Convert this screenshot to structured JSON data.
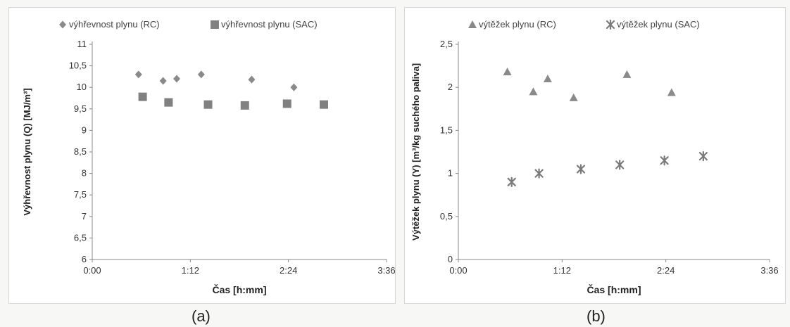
{
  "captions": [
    "(a)",
    "(b)"
  ],
  "chart_data": [
    {
      "type": "scatter",
      "xlabel": "Čas [h:mm]",
      "ylabel": "Výhřevnost plynu (Q) [MJ/m³]",
      "xlim": [
        "0:00",
        "3:36"
      ],
      "ylim": [
        6,
        11
      ],
      "x_ticks": [
        "0:00",
        "1:12",
        "2:24",
        "3:36"
      ],
      "y_ticks": [
        "6",
        "6,5",
        "7",
        "7,5",
        "8",
        "8,5",
        "9",
        "9,5",
        "10",
        "10,5",
        "11"
      ],
      "y_tick_values": [
        6,
        6.5,
        7,
        7.5,
        8,
        8.5,
        9,
        9.5,
        10,
        10.5,
        11
      ],
      "legend_position": "top",
      "series": [
        {
          "name": "výhřevnost plynu (RC)",
          "marker": "diamond",
          "color": "#8a8a8a",
          "x": [
            "0:34",
            "0:52",
            "1:02",
            "1:20",
            "1:57",
            "2:28"
          ],
          "y": [
            10.3,
            10.15,
            10.2,
            10.3,
            10.18,
            10.0
          ]
        },
        {
          "name": "výhřevnost plynu (SAC)",
          "marker": "square",
          "color": "#808080",
          "x": [
            "0:37",
            "0:56",
            "1:25",
            "1:52",
            "2:23",
            "2:50"
          ],
          "y": [
            9.78,
            9.65,
            9.6,
            9.58,
            9.62,
            9.6
          ]
        }
      ]
    },
    {
      "type": "scatter",
      "xlabel": "Čas [h:mm]",
      "ylabel": "Výtěžek plynu (Y) [m³/kg suchého paliva]",
      "xlim": [
        "0:00",
        "3:36"
      ],
      "ylim": [
        0,
        2.5
      ],
      "x_ticks": [
        "0:00",
        "1:12",
        "2:24",
        "3:36"
      ],
      "y_ticks": [
        "0",
        "0,5",
        "1",
        "1,5",
        "2",
        "2,5"
      ],
      "y_tick_values": [
        0,
        0.5,
        1,
        1.5,
        2,
        2.5
      ],
      "legend_position": "top",
      "series": [
        {
          "name": "výtěžek plynu (RC)",
          "marker": "triangle",
          "color": "#8a8a8a",
          "x": [
            "0:34",
            "0:52",
            "1:02",
            "1:20",
            "1:57",
            "2:28"
          ],
          "y": [
            2.18,
            1.95,
            2.1,
            1.88,
            2.15,
            1.94
          ]
        },
        {
          "name": "výtěžek plynu (SAC)",
          "marker": "star",
          "color": "#7a7a7a",
          "x": [
            "0:37",
            "0:56",
            "1:25",
            "1:52",
            "2:23",
            "2:50"
          ],
          "y": [
            0.9,
            1.0,
            1.05,
            1.1,
            1.15,
            1.2
          ]
        }
      ]
    }
  ]
}
